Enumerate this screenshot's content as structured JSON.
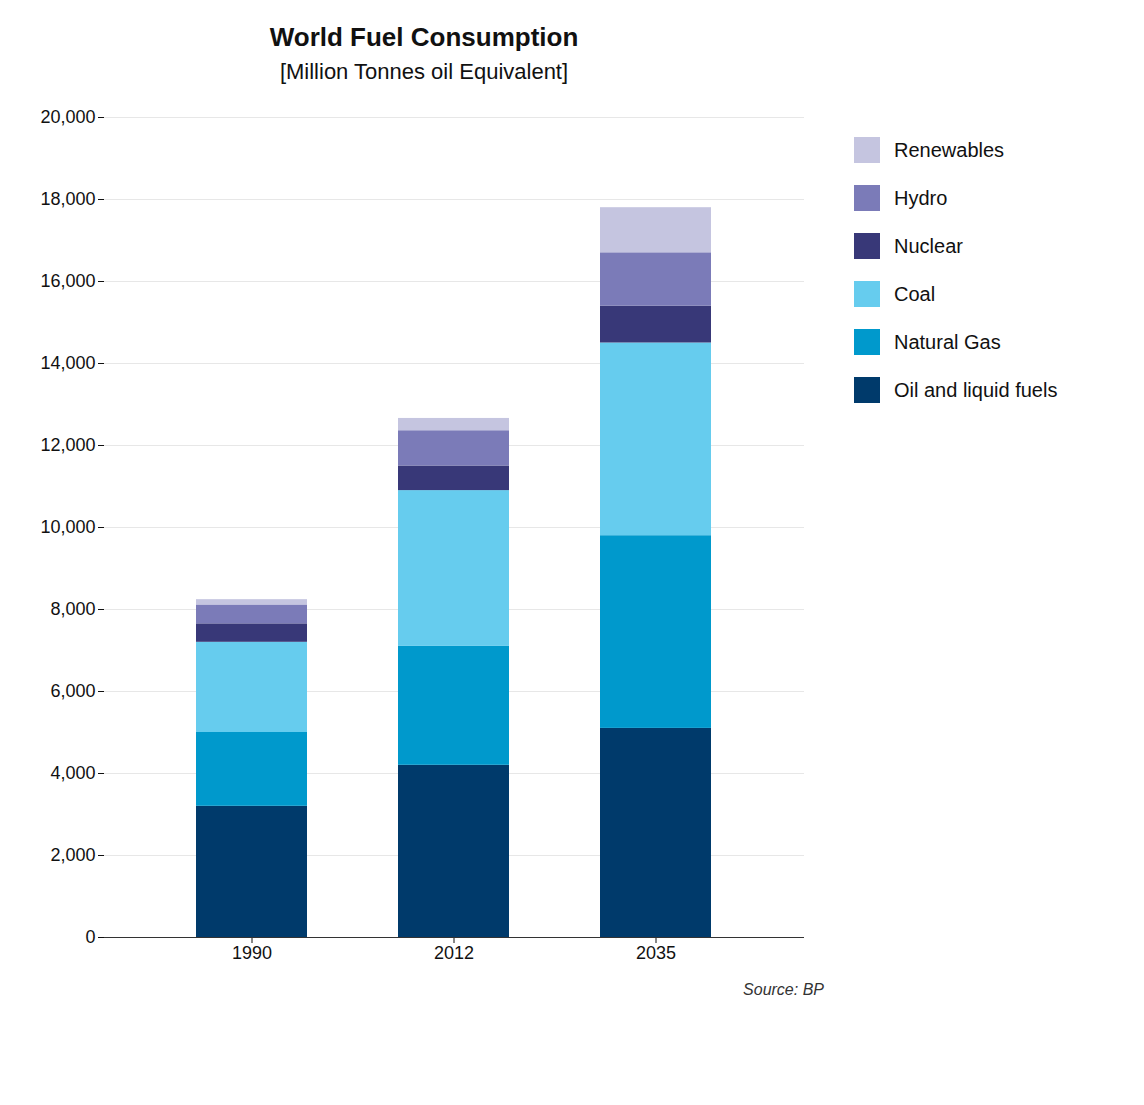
{
  "chart_data": {
    "type": "bar",
    "stacked": true,
    "title": "World Fuel Consumption",
    "subtitle": "[Million Tonnes oil Equivalent]",
    "annotation": "Source: BP",
    "categories": [
      "1990",
      "2012",
      "2035"
    ],
    "series": [
      {
        "name": "Oil and liquid fuels",
        "color": "#003A6B",
        "values": [
          3200,
          4200,
          5100
        ]
      },
      {
        "name": "Natural Gas",
        "color": "#0099CC",
        "values": [
          1800,
          2900,
          4700
        ]
      },
      {
        "name": "Coal",
        "color": "#66CCEE",
        "values": [
          2200,
          3800,
          4700
        ]
      },
      {
        "name": "Nuclear",
        "color": "#383878",
        "values": [
          450,
          600,
          900
        ]
      },
      {
        "name": "Hydro",
        "color": "#7B7BB8",
        "values": [
          460,
          860,
          1300
        ]
      },
      {
        "name": "Renewables",
        "color": "#C5C5E0",
        "values": [
          130,
          300,
          1100
        ]
      }
    ],
    "ylim": [
      0,
      20000
    ],
    "yticks": [
      0,
      {
        "value": 2000,
        "label": "2,000"
      },
      {
        "value": 4000,
        "label": "4,000"
      },
      {
        "value": 6000,
        "label": "6,000"
      },
      {
        "value": 8000,
        "label": "8,000"
      },
      {
        "value": 10000,
        "label": "10,000"
      },
      {
        "value": 12000,
        "label": "12,000"
      },
      {
        "value": 14000,
        "label": "14,000"
      },
      {
        "value": 16000,
        "label": "16,000"
      },
      {
        "value": 18000,
        "label": "18,000"
      },
      {
        "value": 20000,
        "label": "20,000"
      }
    ],
    "grid": true,
    "legend": "right"
  }
}
